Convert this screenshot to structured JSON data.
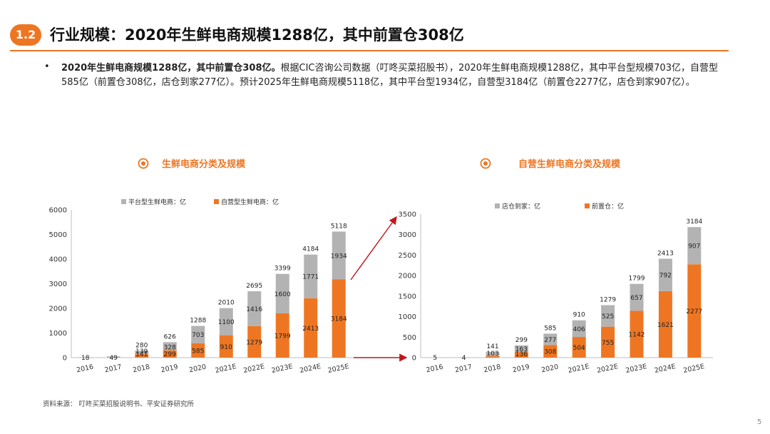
{
  "header": {
    "section": "1.2",
    "title": "行业规模：2020年生鲜电商规模1288亿，其中前置仓308亿"
  },
  "summary": {
    "bullet": "•",
    "bold": "2020年生鲜电商规模1288亿，其中前置仓308亿。",
    "text": "根据CIC咨询公司数据（叮咚买菜招股书），2020年生鲜电商规模1288亿，其中平台型规模703亿，自营型585亿（前置仓308亿，店仓到家277亿）。预计2025年生鲜电商规模5118亿，其中平台型1934亿，自营型3184亿（前置仓2277亿，店仓到家907亿）。"
  },
  "colors": {
    "accent": "#ee7623",
    "gray": "#b3b3b3",
    "arrow": "#c0171c"
  },
  "chart_data": [
    {
      "type": "bar",
      "stacked": true,
      "title": "生鲜电商分类及规模",
      "categories": [
        "2016",
        "2017",
        "2018",
        "2019",
        "2020",
        "2021E",
        "2022E",
        "2023E",
        "2024E",
        "2025E"
      ],
      "series": [
        {
          "name": "自营型生鲜电商：亿",
          "color": "#ee7623",
          "values": [
            5,
            4,
            141,
            299,
            585,
            910,
            1279,
            1799,
            2413,
            3184
          ],
          "labels": [
            "",
            "",
            "141",
            "299",
            "585",
            "910",
            "1279",
            "1799",
            "2413",
            "3184"
          ]
        },
        {
          "name": "平台型生鲜电商：亿",
          "color": "#b3b3b3",
          "values": [
            13,
            45,
            139,
            328,
            703,
            1100,
            1416,
            1600,
            1771,
            1934
          ],
          "labels": [
            "",
            "",
            "139",
            "328",
            "703",
            "1100",
            "1416",
            "1600",
            "1771",
            "1934"
          ]
        }
      ],
      "totals": [
        "18",
        "49",
        "280",
        "626",
        "1288",
        "2010",
        "2695",
        "3399",
        "4184",
        "5118"
      ],
      "ylim": [
        0,
        6000
      ],
      "yticks": [
        "0",
        "1000",
        "2000",
        "3000",
        "4000",
        "5000",
        "6000"
      ],
      "legend": "top"
    },
    {
      "type": "bar",
      "stacked": true,
      "title": "自营生鲜电商分类及规模",
      "categories": [
        "2016",
        "2017",
        "2018",
        "2019",
        "2020",
        "2021E",
        "2022E",
        "2023E",
        "2024E",
        "2025E"
      ],
      "series": [
        {
          "name": "前置仓：亿",
          "color": "#ee7623",
          "values": [
            0,
            4,
            37,
            136,
            308,
            504,
            755,
            1142,
            1621,
            2277
          ],
          "labels": [
            "",
            "",
            "",
            "136",
            "308",
            "504",
            "755",
            "1142",
            "1621",
            "2277"
          ]
        },
        {
          "name": "店仓到家：亿",
          "color": "#b3b3b3",
          "values": [
            5,
            0,
            103,
            163,
            277,
            406,
            525,
            657,
            792,
            907
          ],
          "labels": [
            "",
            "",
            "103",
            "163",
            "277",
            "406",
            "525",
            "657",
            "792",
            "907"
          ]
        }
      ],
      "totals": [
        "5",
        "4",
        "141",
        "299",
        "585",
        "910",
        "1279",
        "1799",
        "2413",
        "3184"
      ],
      "ylim": [
        0,
        3500
      ],
      "yticks": [
        "0",
        "500",
        "1000",
        "1500",
        "2000",
        "2500",
        "3000",
        "3500"
      ],
      "legend": "top"
    }
  ],
  "footer": {
    "source": "资料来源： 叮咚买菜招股说明书、平安证券研究所",
    "page": "5"
  }
}
